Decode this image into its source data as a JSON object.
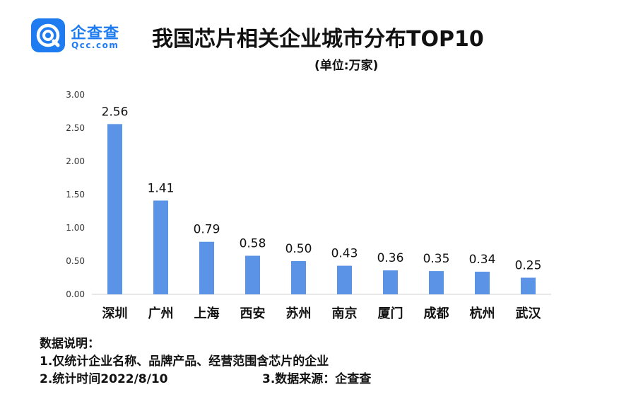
{
  "logo": {
    "name_cn": "企查查",
    "name_en": "Qcc.com",
    "icon": "qcc-logo-icon",
    "color": "#1f7cf0"
  },
  "title": "我国芯片相关企业城市分布TOP10",
  "subtitle": "(单位:万家)",
  "chart_data": {
    "type": "bar",
    "categories": [
      "深圳",
      "广州",
      "上海",
      "西安",
      "苏州",
      "南京",
      "厦门",
      "成都",
      "杭州",
      "武汉"
    ],
    "values": [
      2.56,
      1.41,
      0.79,
      0.58,
      0.5,
      0.43,
      0.36,
      0.35,
      0.34,
      0.25
    ],
    "value_labels": [
      "2.56",
      "1.41",
      "0.79",
      "0.58",
      "0.50",
      "0.43",
      "0.36",
      "0.35",
      "0.34",
      "0.25"
    ],
    "ylim": [
      0,
      3
    ],
    "yticks": [
      "0.00",
      "0.50",
      "1.00",
      "1.50",
      "2.00",
      "2.50",
      "3.00"
    ],
    "bar_color": "#5b93e6",
    "grid": false
  },
  "notes": {
    "heading": "数据说明：",
    "line1": "1.仅统计企业名称、品牌产品、经营范围含芯片的企业",
    "line2": "2.统计时间2022/8/10",
    "line3": "3.数据来源：企查查"
  }
}
